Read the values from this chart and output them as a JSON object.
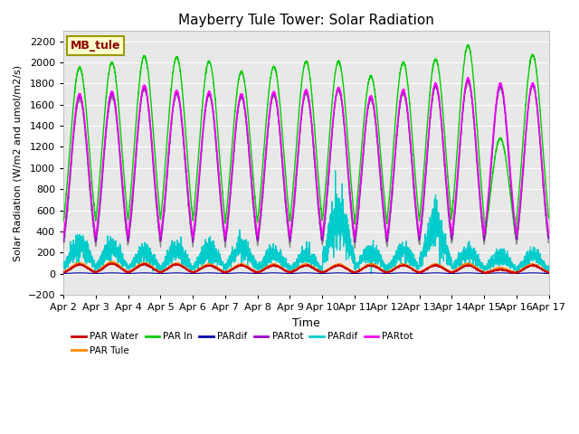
{
  "title": "Mayberry Tule Tower: Solar Radiation",
  "xlabel": "Time",
  "ylabel": "Solar Radiation (W/m2 and umol/m2/s)",
  "ylim": [
    -200,
    2300
  ],
  "yticks": [
    -200,
    0,
    200,
    400,
    600,
    800,
    1000,
    1200,
    1400,
    1600,
    1800,
    2000,
    2200
  ],
  "date_labels": [
    "Apr 2",
    "Apr 3",
    "Apr 4",
    "Apr 5",
    "Apr 6",
    "Apr 7",
    "Apr 8",
    "Apr 9",
    "Apr 10",
    "Apr 11",
    "Apr 12",
    "Apr 13",
    "Apr 14",
    "Apr 15",
    "Apr 16",
    "Apr 17"
  ],
  "n_days": 15,
  "colors": {
    "PAR_Water": "#cc0000",
    "PAR_Tule": "#ff8800",
    "PAR_In": "#00cc00",
    "PARdif_blue": "#0000aa",
    "PARtot_purple": "#9900cc",
    "PARdif_cyan": "#00cccc",
    "PARtot_magenta": "#ff00ff",
    "gray": "#888888"
  },
  "legend_labels": [
    "PAR Water",
    "PAR Tule",
    "PAR In",
    "PARdif",
    "PARtot",
    "PARdif",
    "PARtot"
  ],
  "legend_colors": [
    "#cc0000",
    "#ff8800",
    "#00cc00",
    "#0000aa",
    "#9900cc",
    "#00cccc",
    "#ff00ff"
  ],
  "watermark_text": "MB_tule",
  "fig_bg": "#ffffff",
  "plot_bg": "#e8e8e8"
}
